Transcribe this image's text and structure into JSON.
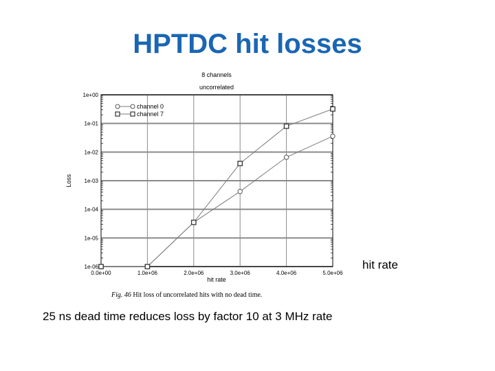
{
  "slide": {
    "title": "HPTDC hit losses",
    "side_label": "hit rate",
    "note": "25 ns dead time reduces loss by factor 10 at 3 MHz rate"
  },
  "figure": {
    "caption_prefix": "Fig. 46",
    "caption_text": "Hit loss of uncorrelated hits with no dead time."
  },
  "chart_data": {
    "type": "line",
    "title": "8 channels",
    "subtitle": "uncorrelated",
    "xlabel": "hit rate",
    "ylabel": "Loss",
    "y_scale": "log",
    "xlim": [
      0,
      5000000
    ],
    "ylim": [
      1e-06,
      1
    ],
    "x_ticks": [
      0,
      1000000,
      2000000,
      3000000,
      4000000,
      5000000
    ],
    "x_tick_labels": [
      "0.0e+00",
      "1.0e+06",
      "2.0e+06",
      "3.0e+06",
      "4.0e+06",
      "5.0e+06"
    ],
    "y_ticks": [
      1,
      0.1,
      0.01,
      0.001,
      0.0001,
      1e-05,
      1e-06
    ],
    "y_tick_labels": [
      "1e+00",
      "1e-01",
      "1e-02",
      "1e-03",
      "1e-04",
      "1e-05",
      "1e-06"
    ],
    "grid": true,
    "legend_position": "top-left",
    "series": [
      {
        "name": "channel 0",
        "marker": "circle",
        "x": [
          0,
          1000000,
          2000000,
          3000000,
          4000000,
          5000000
        ],
        "y": [
          1e-06,
          1e-06,
          3.5e-05,
          0.00042,
          0.0066,
          0.036
        ]
      },
      {
        "name": "channel 7",
        "marker": "square",
        "x": [
          0,
          1000000,
          2000000,
          3000000,
          4000000,
          5000000
        ],
        "y": [
          1e-06,
          1e-06,
          3.5e-05,
          0.004,
          0.08,
          0.32
        ]
      }
    ],
    "colors": {
      "line": "#7a7a7a",
      "grid": "#8a8a8a",
      "frame": "#000000"
    }
  }
}
